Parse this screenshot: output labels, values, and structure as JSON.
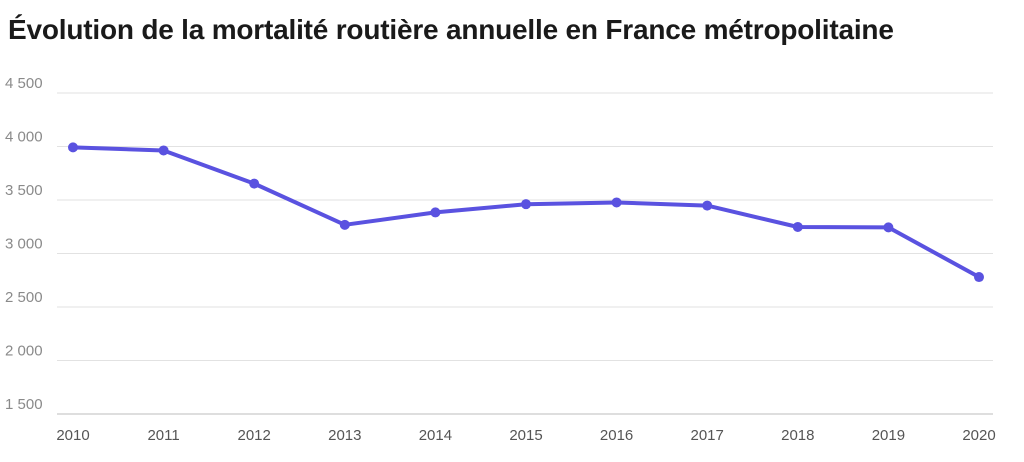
{
  "chart_data": {
    "type": "line",
    "title": "Évolution de la mortalité routière annuelle en France métropolitaine",
    "xlabel": "",
    "ylabel": "",
    "x": [
      "2010",
      "2011",
      "2012",
      "2013",
      "2014",
      "2015",
      "2016",
      "2017",
      "2018",
      "2019",
      "2020"
    ],
    "series": [
      {
        "values": [
          3992,
          3963,
          3653,
          3268,
          3384,
          3461,
          3477,
          3448,
          3248,
          3244,
          2780
        ]
      }
    ],
    "ylim": [
      1500,
      4500
    ],
    "yticks": [
      1500,
      2000,
      2500,
      3000,
      3500,
      4000,
      4500
    ],
    "ytick_labels": [
      "1 500",
      "2 000",
      "2 500",
      "3 000",
      "3 500",
      "4 000",
      "4 500"
    ],
    "grid": true,
    "colors": {
      "line": "#5a52e0",
      "grid": "#e2e2e2",
      "tick": "#8a8a8a"
    }
  }
}
